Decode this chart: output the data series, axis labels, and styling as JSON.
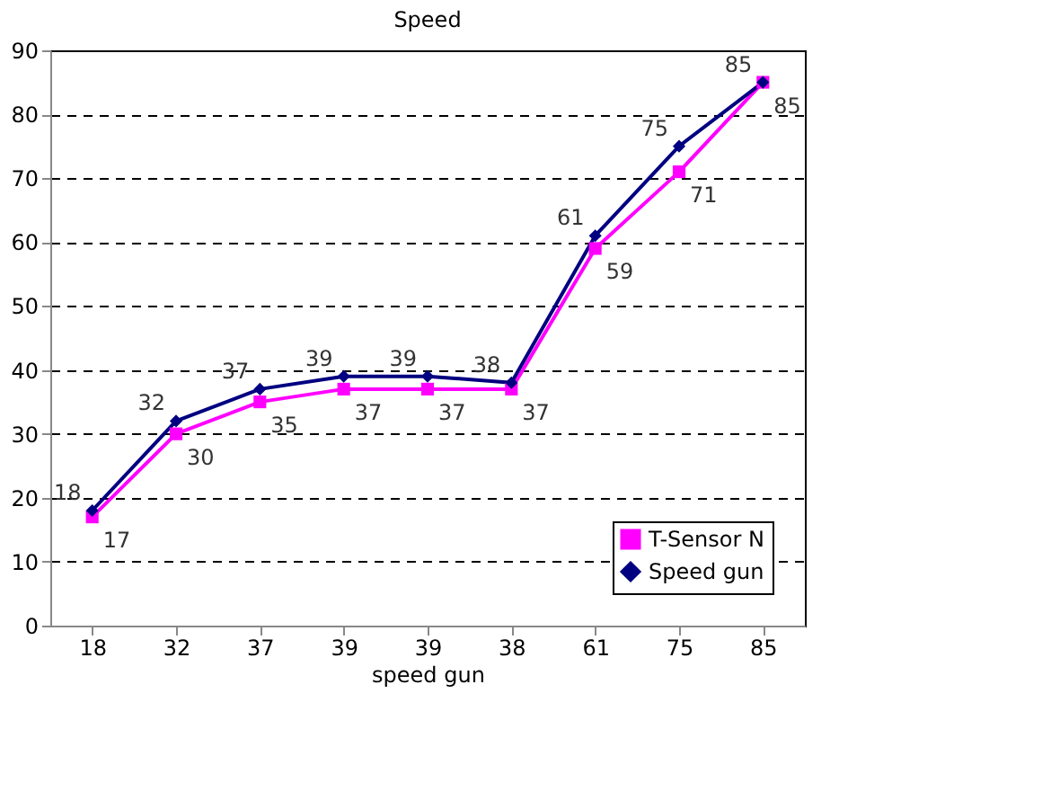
{
  "chart_data": {
    "type": "line",
    "title": "Speed",
    "xlabel": "speed gun",
    "categories": [
      "18",
      "32",
      "37",
      "39",
      "39",
      "38",
      "61",
      "75",
      "85"
    ],
    "series": [
      {
        "name": "T-Sensor N",
        "color": "#ff00ff",
        "marker": "square",
        "values": [
          17,
          30,
          35,
          37,
          37,
          37,
          59,
          71,
          85
        ]
      },
      {
        "name": "Speed gun",
        "color": "#000080",
        "marker": "diamond",
        "values": [
          18,
          32,
          37,
          39,
          39,
          38,
          61,
          75,
          85
        ]
      }
    ],
    "ylim": [
      0,
      90
    ],
    "yticks": [
      0,
      10,
      20,
      30,
      40,
      50,
      60,
      70,
      80,
      90
    ],
    "grid": "y",
    "legend": "bottom right",
    "data_labels": true,
    "line_style": "solid"
  }
}
